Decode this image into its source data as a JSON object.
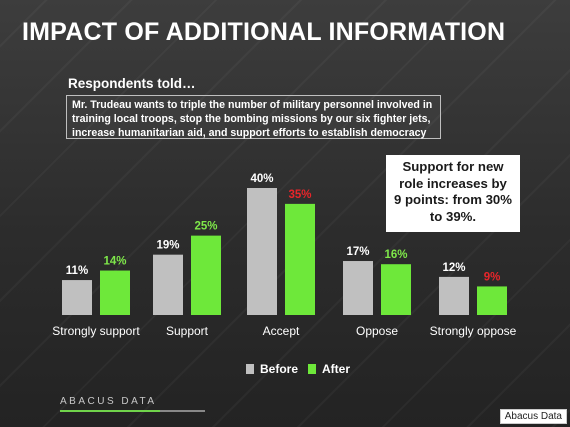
{
  "title": "IMPACT OF ADDITIONAL INFORMATION",
  "subtitle": "Respondents told…",
  "quote": "Mr. Trudeau wants to triple the number of military personnel involved in training local troops, stop the bombing missions by our six fighter jets, increase humanitarian aid, and support efforts to establish democracy",
  "callout": "Support for new role increases by 9 points: from 30% to 39%.",
  "logo": "ABACUS DATA",
  "credit": "Abacus Data",
  "colors": {
    "before": "#c0c0c0",
    "after": "#6ee83a",
    "after_label": "#7fe84a",
    "decrease_label": "#e8252a"
  },
  "chart_data": {
    "type": "bar",
    "categories": [
      "Strongly support",
      "Support",
      "Accept",
      "Oppose",
      "Strongly oppose"
    ],
    "series": [
      {
        "name": "Before",
        "values": [
          11,
          19,
          40,
          17,
          12
        ],
        "labels": [
          "11%",
          "19%",
          "40%",
          "17%",
          "12%"
        ]
      },
      {
        "name": "After",
        "values": [
          14,
          25,
          35,
          16,
          9
        ],
        "labels": [
          "14%",
          "25%",
          "35%",
          "16%",
          "9%"
        ],
        "decrease": [
          false,
          false,
          true,
          false,
          true
        ]
      }
    ],
    "ylim": [
      0,
      40
    ],
    "legend_position": "bottom",
    "grid": false
  }
}
